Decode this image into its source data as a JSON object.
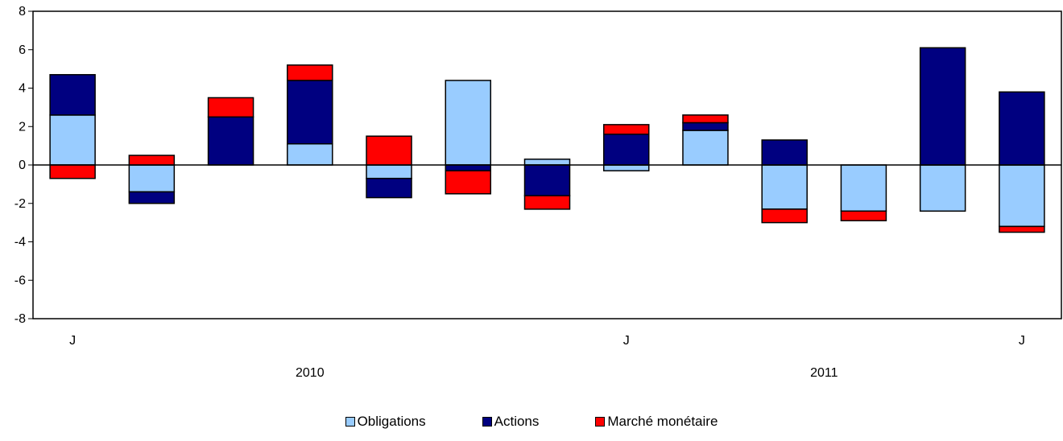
{
  "chart_data": {
    "type": "bar",
    "stacked": true,
    "title": "",
    "xlabel": "",
    "ylabel": "",
    "ylim": [
      -8,
      8
    ],
    "yticks": [
      8,
      6,
      4,
      2,
      0,
      -2,
      -4,
      -6,
      -8
    ],
    "month_labels": [
      {
        "index": 0,
        "label": "J"
      },
      {
        "index": 7,
        "label": "J"
      },
      {
        "index": 12,
        "label": "J"
      }
    ],
    "year_labels": [
      {
        "center_index": 3,
        "label": "2010"
      },
      {
        "center_index": 9.5,
        "label": "2011"
      }
    ],
    "categories": [
      "1",
      "2",
      "3",
      "4",
      "5",
      "6",
      "7",
      "8",
      "9",
      "10",
      "11",
      "12",
      "13"
    ],
    "colors": {
      "Obligations": "#99ccff",
      "Actions": "#000080",
      "Marché monétaire": "#ff0000"
    },
    "series": [
      {
        "name": "Obligations",
        "values": [
          2.6,
          -1.4,
          0.0,
          1.1,
          -0.7,
          4.4,
          0.3,
          -0.3,
          1.8,
          -2.3,
          -2.4,
          -2.4,
          -3.2
        ]
      },
      {
        "name": "Actions",
        "values": [
          2.1,
          -0.6,
          2.5,
          3.3,
          -1.0,
          -0.3,
          -1.6,
          1.6,
          0.4,
          1.3,
          0.0,
          6.1,
          3.8
        ]
      },
      {
        "name": "Marché monétaire",
        "values": [
          -0.7,
          0.5,
          1.0,
          0.8,
          1.5,
          -1.2,
          -0.7,
          0.5,
          0.4,
          -0.7,
          -0.5,
          0.0,
          -0.3
        ]
      }
    ],
    "legend": {
      "placement": "bottom"
    }
  }
}
